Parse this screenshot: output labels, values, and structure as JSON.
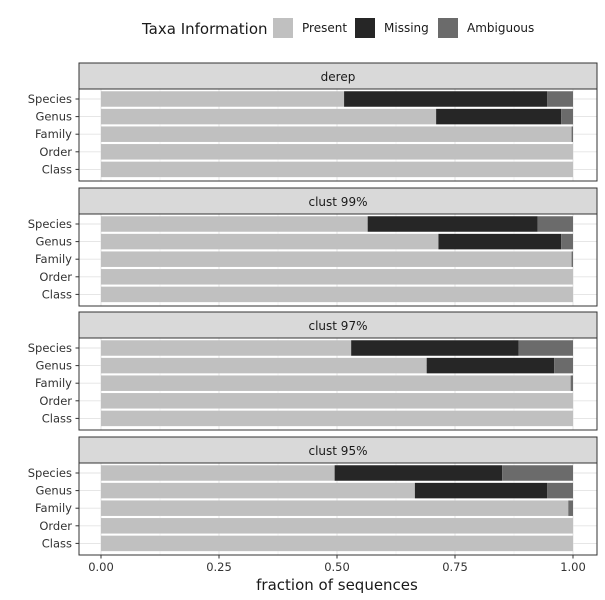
{
  "chart_data": {
    "type": "bar",
    "orientation": "horizontal",
    "stacked": true,
    "legend": {
      "title": "Taxa Information",
      "position": "top",
      "entries": [
        {
          "name": "Present",
          "color": "#c0c0c0"
        },
        {
          "name": "Missing",
          "color": "#262626"
        },
        {
          "name": "Ambiguous",
          "color": "#6b6b6b"
        }
      ]
    },
    "xlabel": "fraction of sequences",
    "xlim": [
      0,
      1
    ],
    "xticks": [
      0,
      0.25,
      0.5,
      0.75,
      1
    ],
    "xtick_labels": [
      "0.00",
      "0.25",
      "0.50",
      "0.75",
      "1.00"
    ],
    "categories": [
      "Species",
      "Genus",
      "Family",
      "Order",
      "Class"
    ],
    "panels": [
      {
        "title": "derep",
        "bars": [
          {
            "category": "Species",
            "Present": 0.515,
            "Missing": 0.43,
            "Ambiguous": 0.055
          },
          {
            "category": "Genus",
            "Present": 0.71,
            "Missing": 0.265,
            "Ambiguous": 0.025
          },
          {
            "category": "Family",
            "Present": 0.997,
            "Missing": 0.0,
            "Ambiguous": 0.003
          },
          {
            "category": "Order",
            "Present": 1.0,
            "Missing": 0.0,
            "Ambiguous": 0.0
          },
          {
            "category": "Class",
            "Present": 1.0,
            "Missing": 0.0,
            "Ambiguous": 0.0
          }
        ]
      },
      {
        "title": "clust 99%",
        "bars": [
          {
            "category": "Species",
            "Present": 0.565,
            "Missing": 0.36,
            "Ambiguous": 0.075
          },
          {
            "category": "Genus",
            "Present": 0.715,
            "Missing": 0.26,
            "Ambiguous": 0.025
          },
          {
            "category": "Family",
            "Present": 0.997,
            "Missing": 0.0,
            "Ambiguous": 0.003
          },
          {
            "category": "Order",
            "Present": 1.0,
            "Missing": 0.0,
            "Ambiguous": 0.0
          },
          {
            "category": "Class",
            "Present": 1.0,
            "Missing": 0.0,
            "Ambiguous": 0.0
          }
        ]
      },
      {
        "title": "clust 97%",
        "bars": [
          {
            "category": "Species",
            "Present": 0.53,
            "Missing": 0.355,
            "Ambiguous": 0.115
          },
          {
            "category": "Genus",
            "Present": 0.69,
            "Missing": 0.27,
            "Ambiguous": 0.04
          },
          {
            "category": "Family",
            "Present": 0.995,
            "Missing": 0.0,
            "Ambiguous": 0.005
          },
          {
            "category": "Order",
            "Present": 1.0,
            "Missing": 0.0,
            "Ambiguous": 0.0
          },
          {
            "category": "Class",
            "Present": 1.0,
            "Missing": 0.0,
            "Ambiguous": 0.0
          }
        ]
      },
      {
        "title": "clust 95%",
        "bars": [
          {
            "category": "Species",
            "Present": 0.495,
            "Missing": 0.355,
            "Ambiguous": 0.15
          },
          {
            "category": "Genus",
            "Present": 0.665,
            "Missing": 0.28,
            "Ambiguous": 0.055
          },
          {
            "category": "Family",
            "Present": 0.99,
            "Missing": 0.0,
            "Ambiguous": 0.01
          },
          {
            "category": "Order",
            "Present": 1.0,
            "Missing": 0.0,
            "Ambiguous": 0.0
          },
          {
            "category": "Class",
            "Present": 1.0,
            "Missing": 0.0,
            "Ambiguous": 0.0
          }
        ]
      }
    ]
  }
}
